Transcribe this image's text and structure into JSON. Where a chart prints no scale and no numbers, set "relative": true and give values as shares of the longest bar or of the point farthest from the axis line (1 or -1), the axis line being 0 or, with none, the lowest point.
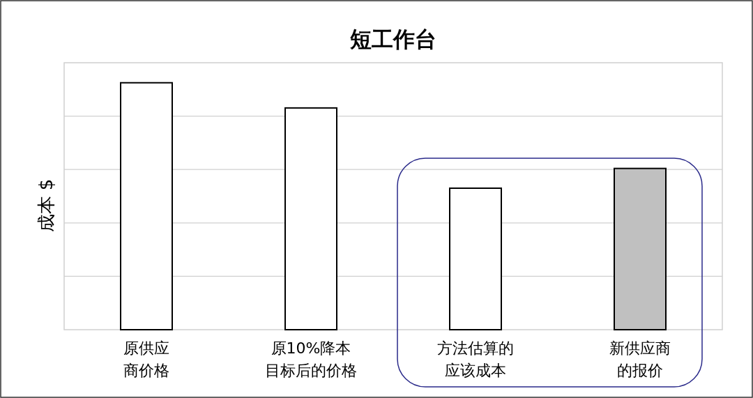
{
  "chart_data": {
    "type": "bar",
    "title": "短工作台",
    "ylabel": "成本 $",
    "relative": true,
    "grid": "y",
    "categories": [
      "原供应商价格",
      "原10%降本目标后的价格",
      "方法估算的应该成本",
      "新供应商的报价"
    ],
    "values": [
      1,
      0.898,
      0.573,
      0.653
    ],
    "colors": [
      "#ffffff",
      "#ffffff",
      "#ffffff",
      "#c0c0c0"
    ]
  }
}
